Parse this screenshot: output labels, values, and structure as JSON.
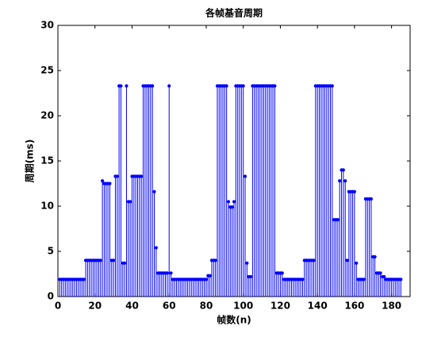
{
  "chart_data": {
    "type": "stem",
    "title": "各帧基音周期",
    "xlabel": "帧数(n)",
    "ylabel": "周期(ms)",
    "color": "#0000ff",
    "xlim": [
      0,
      190
    ],
    "xticks": [
      0,
      20,
      40,
      60,
      80,
      100,
      120,
      140,
      160,
      180
    ],
    "ylim": [
      0,
      30
    ],
    "yticks": [
      0,
      5,
      10,
      15,
      20,
      25,
      30
    ],
    "x": [
      1,
      2,
      3,
      4,
      5,
      6,
      7,
      8,
      9,
      10,
      11,
      12,
      13,
      14,
      15,
      16,
      17,
      18,
      19,
      20,
      21,
      22,
      23,
      24,
      25,
      26,
      27,
      28,
      29,
      30,
      31,
      32,
      33,
      34,
      35,
      36,
      37,
      38,
      39,
      40,
      41,
      42,
      43,
      44,
      45,
      46,
      47,
      48,
      49,
      50,
      51,
      52,
      53,
      54,
      55,
      56,
      57,
      58,
      59,
      60,
      61,
      62,
      63,
      64,
      65,
      66,
      67,
      68,
      69,
      70,
      71,
      72,
      73,
      74,
      75,
      76,
      77,
      78,
      79,
      80,
      81,
      82,
      83,
      84,
      85,
      86,
      87,
      88,
      89,
      90,
      91,
      92,
      93,
      94,
      95,
      96,
      97,
      98,
      99,
      100,
      101,
      102,
      103,
      104,
      105,
      106,
      107,
      108,
      109,
      110,
      111,
      112,
      113,
      114,
      115,
      116,
      117,
      118,
      119,
      120,
      121,
      122,
      123,
      124,
      125,
      126,
      127,
      128,
      129,
      130,
      131,
      132,
      133,
      134,
      135,
      136,
      137,
      138,
      139,
      140,
      141,
      142,
      143,
      144,
      145,
      146,
      147,
      148,
      149,
      150,
      151,
      152,
      153,
      154,
      155,
      156,
      157,
      158,
      159,
      160,
      161,
      162,
      163,
      164,
      165,
      166,
      167,
      168,
      169,
      170,
      171,
      172,
      173,
      174,
      175,
      176,
      177,
      178,
      179,
      180,
      181,
      182,
      183,
      184,
      185
    ],
    "values": [
      1.9,
      1.9,
      1.9,
      1.9,
      1.9,
      1.9,
      1.9,
      1.9,
      1.9,
      1.9,
      1.9,
      1.9,
      1.9,
      1.9,
      4,
      4,
      4,
      4,
      4,
      4,
      4,
      4,
      4,
      12.8,
      12.5,
      12.5,
      12.5,
      12.5,
      4,
      4,
      13.3,
      13.3,
      23.3,
      23.3,
      3.7,
      3.7,
      23.3,
      10.5,
      10.5,
      13.3,
      13.3,
      13.3,
      13.3,
      13.3,
      13.3,
      23.3,
      23.3,
      23.3,
      23.3,
      23.3,
      23.3,
      11.6,
      5.4,
      2.6,
      2.6,
      2.6,
      2.6,
      2.6,
      2.6,
      23.3,
      2.6,
      1.9,
      1.9,
      1.9,
      1.9,
      1.9,
      1.9,
      1.9,
      1.9,
      1.9,
      1.9,
      1.9,
      1.9,
      1.9,
      1.9,
      1.9,
      1.9,
      1.9,
      1.9,
      1.9,
      2.3,
      2.3,
      4,
      4,
      4,
      23.3,
      23.3,
      23.3,
      23.3,
      23.3,
      23.3,
      10.5,
      9.9,
      9.9,
      10.5,
      23.3,
      23.3,
      23.3,
      23.3,
      23.3,
      13.3,
      3.7,
      2.2,
      2.2,
      23.3,
      23.3,
      23.3,
      23.3,
      23.3,
      23.3,
      23.3,
      23.3,
      23.3,
      23.3,
      23.3,
      23.3,
      23.3,
      2.6,
      2.6,
      2.6,
      2.6,
      1.9,
      1.9,
      1.9,
      1.9,
      1.9,
      1.9,
      1.9,
      1.9,
      1.9,
      1.9,
      1.9,
      4,
      4,
      4,
      4,
      4,
      4,
      23.3,
      23.3,
      23.3,
      23.3,
      23.3,
      23.3,
      23.3,
      23.3,
      23.3,
      23.3,
      8.5,
      8.5,
      8.5,
      12.8,
      14,
      14,
      12.8,
      4,
      11.6,
      11.6,
      11.6,
      11.6,
      3.7,
      1.9,
      1.9,
      1.9,
      1.9,
      10.8,
      10.8,
      10.8,
      10.8,
      4.4,
      4.4,
      2.6,
      2.6,
      2.6,
      2.2,
      2.2,
      1.9,
      1.9,
      1.9,
      1.9,
      1.9,
      1.9,
      1.9,
      1.9,
      1.9
    ]
  }
}
